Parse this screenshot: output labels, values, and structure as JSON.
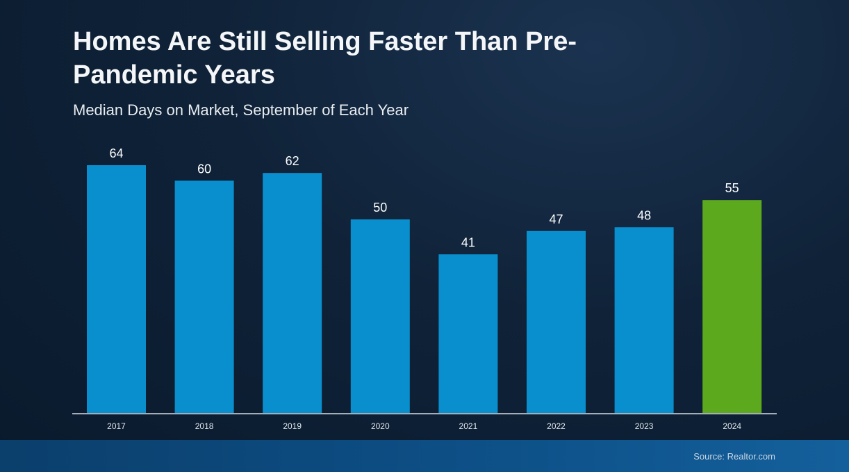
{
  "colors": {
    "background": "#0f2238",
    "bar_default": "#0a8fce",
    "bar_highlight": "#5da91d",
    "baseline": "#d7dde3",
    "text": "#ffffff",
    "bottom_band": "#0d4f86"
  },
  "source_text": "Source: Realtor.com",
  "chart_data": {
    "type": "bar",
    "title": "Homes Are Still Selling Faster Than Pre-Pandemic Years",
    "subtitle": "Median Days on Market, September of Each Year",
    "xlabel": "",
    "ylabel": "",
    "categories": [
      "2017",
      "2018",
      "2019",
      "2020",
      "2021",
      "2022",
      "2023",
      "2024"
    ],
    "values": [
      64,
      60,
      62,
      50,
      41,
      47,
      48,
      55
    ],
    "highlight_category": "2024",
    "data_labels": true,
    "grid": false,
    "ylim": [
      0,
      64
    ]
  }
}
